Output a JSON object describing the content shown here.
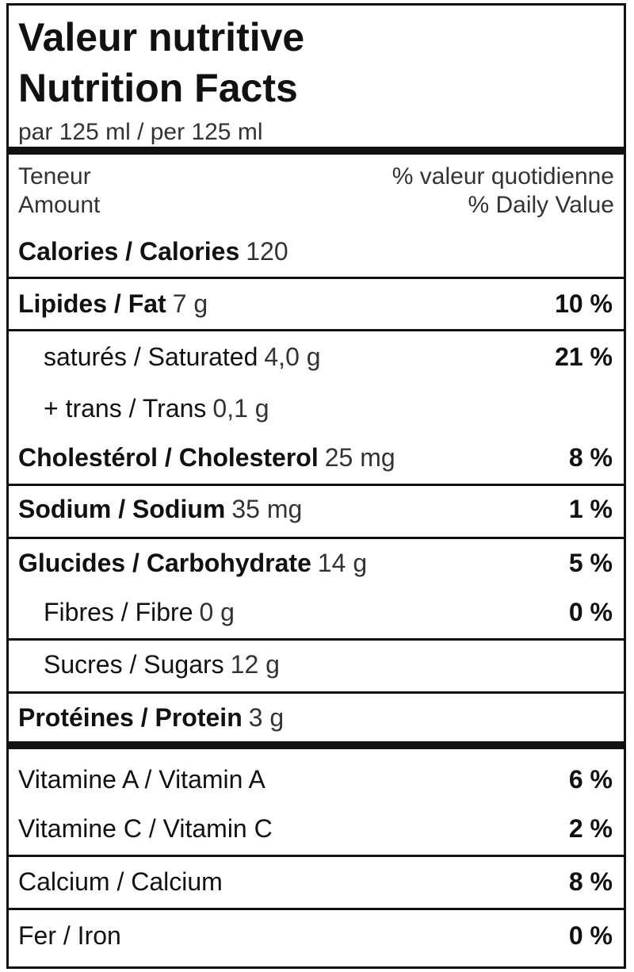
{
  "header": {
    "title_fr": "Valeur nutritive",
    "title_en": "Nutrition Facts",
    "serving": "par 125 ml / per 125 ml"
  },
  "columns": {
    "amount_fr": "Teneur",
    "amount_en": "Amount",
    "dv_fr": "% valeur quotidienne",
    "dv_en": "% Daily Value"
  },
  "rows": [
    {
      "label": "Calories / Calories",
      "amount": "120"
    },
    {
      "label": "Lipides / Fat",
      "amount": "7 g",
      "dv": "10 %"
    },
    {
      "label": "saturés / Saturated",
      "amount": "4,0 g",
      "dv": "21 %"
    },
    {
      "label": "+ trans / Trans",
      "amount": "0,1 g"
    },
    {
      "label": "Cholestérol / Cholesterol",
      "amount": "25 mg",
      "dv": "8 %"
    },
    {
      "label": "Sodium / Sodium",
      "amount": "35 mg",
      "dv": "1 %"
    },
    {
      "label": "Glucides / Carbohydrate",
      "amount": "14 g",
      "dv": "5 %"
    },
    {
      "label": "Fibres / Fibre",
      "amount": "0 g",
      "dv": "0 %"
    },
    {
      "label": "Sucres / Sugars",
      "amount": "12 g"
    },
    {
      "label": "Protéines / Protein",
      "amount": "3 g"
    },
    {
      "label": "Vitamine A / Vitamin A",
      "dv": "6 %"
    },
    {
      "label": "Vitamine C / Vitamin C",
      "dv": "2 %"
    },
    {
      "label": "Calcium / Calcium",
      "dv": "8 %"
    },
    {
      "label": "Fer / Iron",
      "dv": "0 %"
    }
  ]
}
